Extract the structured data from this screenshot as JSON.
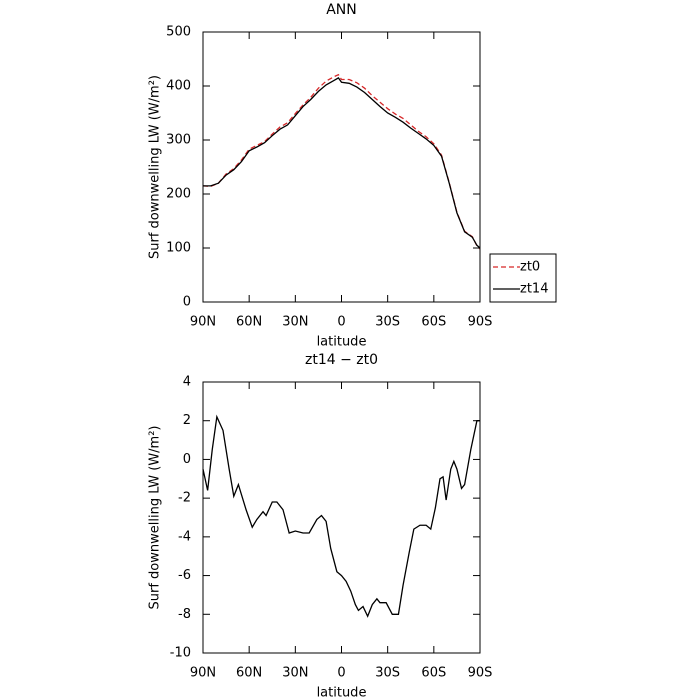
{
  "chart_data": [
    {
      "type": "line",
      "title": "ANN",
      "xlabel": "latitude",
      "ylabel": "Surf downwelling LW (W/m²)",
      "x": [
        90,
        85,
        80,
        75,
        70,
        65,
        60,
        55,
        50,
        45,
        40,
        35,
        30,
        25,
        20,
        15,
        10,
        5,
        2,
        0,
        -5,
        -10,
        -15,
        -20,
        -25,
        -30,
        -35,
        -40,
        -45,
        -50,
        -55,
        -60,
        -65,
        -70,
        -75,
        -80,
        -85,
        -88,
        -90
      ],
      "series": [
        {
          "name": "zt0",
          "color": "#d62728",
          "style": "dashed",
          "values": [
            215,
            214,
            220,
            237,
            247,
            263,
            283,
            290,
            297,
            311,
            324,
            332,
            349,
            365,
            379,
            396,
            409,
            417,
            421,
            412,
            412,
            406,
            396,
            382,
            370,
            358,
            348,
            340,
            328,
            316,
            306,
            293,
            272,
            221,
            166,
            131,
            121,
            104,
            98
          ]
        },
        {
          "name": "zt14",
          "color": "#000000",
          "style": "solid",
          "values": [
            215,
            215,
            220,
            235,
            245,
            260,
            280,
            287,
            295,
            308,
            320,
            328,
            345,
            362,
            375,
            390,
            402,
            410,
            415,
            407,
            405,
            398,
            388,
            375,
            362,
            350,
            342,
            333,
            322,
            312,
            302,
            290,
            270,
            220,
            165,
            130,
            120,
            105,
            100
          ]
        }
      ],
      "xlim": [
        90,
        -90
      ],
      "xticks": [
        {
          "value": 90,
          "label": "90N"
        },
        {
          "value": 60,
          "label": "60N"
        },
        {
          "value": 30,
          "label": "30N"
        },
        0,
        {
          "value": -30,
          "label": "30S"
        },
        {
          "value": -60,
          "label": "60S"
        },
        {
          "value": -90,
          "label": "90S"
        }
      ],
      "ylim": [
        0,
        500
      ],
      "yticks": [
        0,
        100,
        200,
        300,
        400,
        500
      ],
      "legend": "right"
    },
    {
      "type": "line",
      "title": "zt14 − zt0",
      "xlabel": "latitude",
      "ylabel": "Surf downwelling LW (W/m²)",
      "x": [
        90,
        87,
        84,
        81,
        77,
        73,
        70,
        67,
        62,
        58,
        55,
        51,
        49,
        45,
        42,
        38,
        34,
        30,
        25,
        21,
        16,
        13,
        10,
        7,
        3,
        0,
        -3,
        -6,
        -9,
        -11,
        -14,
        -17,
        -20,
        -23,
        -25,
        -29,
        -33,
        -37,
        -40,
        -44,
        -47,
        -51,
        -55,
        -58,
        -61,
        -64,
        -66,
        -68,
        -71,
        -73,
        -75,
        -78,
        -80,
        -84,
        -88,
        -90
      ],
      "color": "#000000",
      "values": [
        -0.5,
        -1.6,
        0.5,
        2.2,
        1.5,
        -0.5,
        -1.9,
        -1.3,
        -2.6,
        -3.5,
        -3.1,
        -2.7,
        -2.9,
        -2.2,
        -2.2,
        -2.6,
        -3.8,
        -3.7,
        -3.8,
        -3.8,
        -3.1,
        -2.9,
        -3.2,
        -4.6,
        -5.8,
        -6.0,
        -6.3,
        -6.8,
        -7.5,
        -7.8,
        -7.6,
        -8.1,
        -7.5,
        -7.2,
        -7.4,
        -7.4,
        -8.0,
        -8.0,
        -6.5,
        -4.8,
        -3.6,
        -3.4,
        -3.4,
        -3.6,
        -2.5,
        -1.0,
        -0.9,
        -2.1,
        -0.5,
        -0.1,
        -0.5,
        -1.5,
        -1.3,
        0.5,
        2.0,
        2.0
      ],
      "xlim": [
        90,
        -90
      ],
      "xticks": [
        {
          "value": 90,
          "label": "90N"
        },
        {
          "value": 60,
          "label": "60N"
        },
        {
          "value": 30,
          "label": "30N"
        },
        0,
        {
          "value": -30,
          "label": "30S"
        },
        {
          "value": -60,
          "label": "60S"
        },
        {
          "value": -90,
          "label": "90S"
        }
      ],
      "ylim": [
        -10,
        4
      ],
      "yticks": [
        -10,
        -8,
        -6,
        -4,
        -2,
        0,
        2,
        4
      ]
    }
  ]
}
